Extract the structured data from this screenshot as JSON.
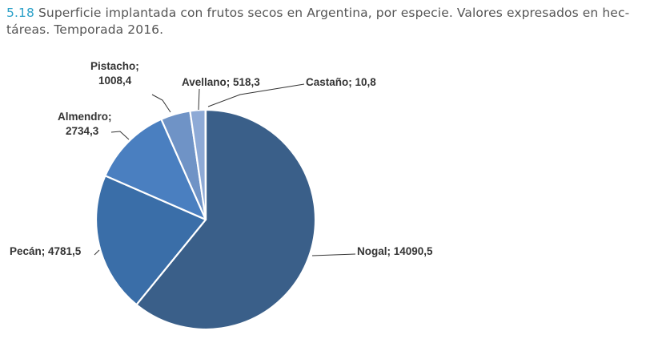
{
  "caption": {
    "number": "5.18",
    "text": "Superficie implantada con frutos secos en Argentina, por especie. Valores expresados en hec-",
    "text2": "táreas. Temporada 2016."
  },
  "chart_data": {
    "type": "pie",
    "series": [
      {
        "label": "Nogal",
        "value": 14090.5,
        "color": "#3a5f89",
        "label_lines": [
          "Nogal; 14090,5"
        ]
      },
      {
        "label": "Pecán",
        "value": 4781.5,
        "color": "#3a6ea8",
        "label_lines": [
          "Pecán; 4781,5"
        ]
      },
      {
        "label": "Almendro",
        "value": 2734.3,
        "color": "#4a7fc0",
        "label_lines": [
          "Almendro;",
          "2734,3"
        ]
      },
      {
        "label": "Pistacho",
        "value": 1008.4,
        "color": "#6f93c6",
        "label_lines": [
          "Pistacho;",
          "1008,4"
        ]
      },
      {
        "label": "Avellano",
        "value": 518.3,
        "color": "#8eaad6",
        "label_lines": [
          "Avellano; 518,3"
        ]
      },
      {
        "label": "Castaño",
        "value": 10.8,
        "color": "#b4c6e6",
        "label_lines": [
          "Castaño; 10,8"
        ]
      }
    ]
  }
}
